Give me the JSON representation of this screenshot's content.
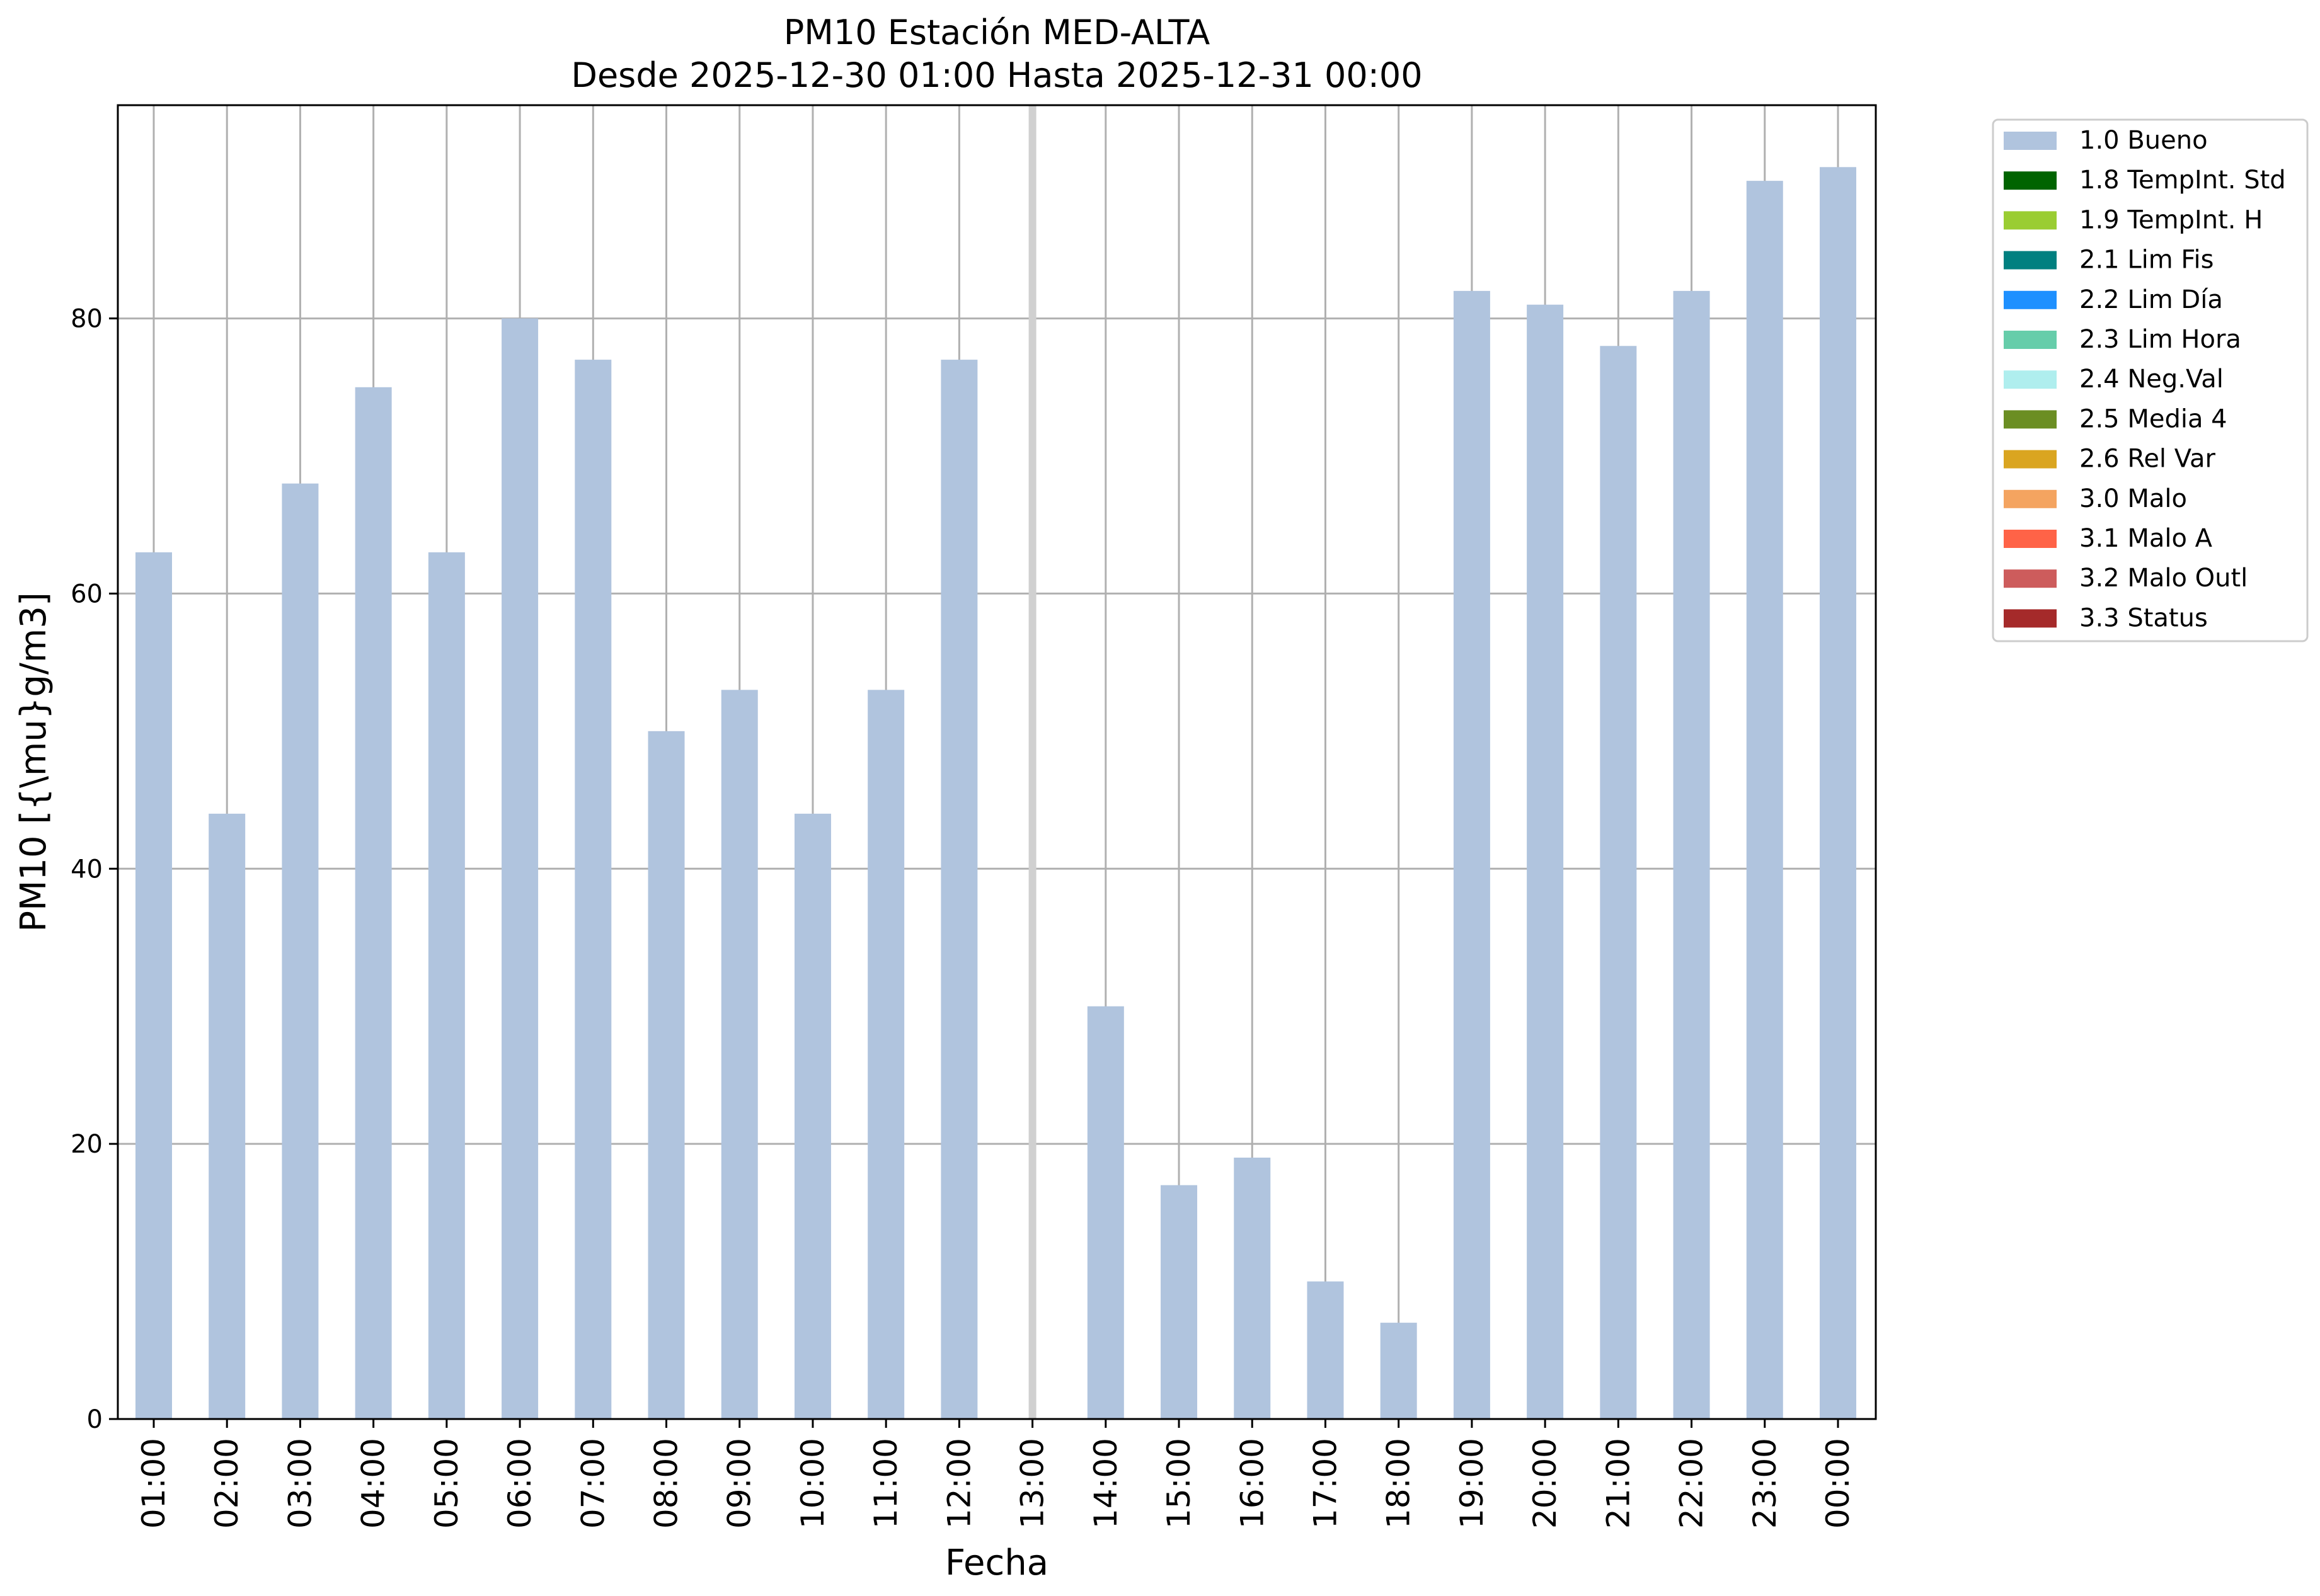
{
  "chart_data": {
    "type": "bar",
    "title": "PM10 Estación MED-ALTA",
    "subtitle": "Desde 2025-12-30 01:00 Hasta 2025-12-31 00:00",
    "xlabel": "Fecha",
    "ylabel": "PM10 [{\\mu}g/m3]",
    "ylim": [
      0,
      95.5
    ],
    "yticks": [
      "0",
      "20",
      "40",
      "60",
      "80"
    ],
    "grid": true,
    "legend_placement": "outside-top-right",
    "categories": [
      "01:00",
      "02:00",
      "03:00",
      "04:00",
      "05:00",
      "06:00",
      "07:00",
      "08:00",
      "09:00",
      "10:00",
      "11:00",
      "12:00",
      "13:00",
      "14:00",
      "15:00",
      "16:00",
      "17:00",
      "18:00",
      "19:00",
      "20:00",
      "21:00",
      "22:00",
      "23:00",
      "00:00"
    ],
    "series": [
      {
        "name": "1.0 Bueno",
        "color": "#b0c4de",
        "values": [
          63,
          44,
          68,
          75,
          63,
          80,
          77,
          50,
          53,
          44,
          53,
          77,
          null,
          30,
          17,
          19,
          10,
          7,
          82,
          81,
          78,
          82,
          90,
          91
        ]
      }
    ],
    "missing_marker_index": 12,
    "legend": [
      {
        "label": "1.0 Bueno",
        "color": "#b0c4de"
      },
      {
        "label": "1.8 TempInt. Std",
        "color": "#006400"
      },
      {
        "label": "1.9 TempInt. H",
        "color": "#9acd32"
      },
      {
        "label": "2.1 Lim Fis",
        "color": "#008080"
      },
      {
        "label": "2.2 Lim Día",
        "color": "#1e90ff"
      },
      {
        "label": "2.3 Lim Hora",
        "color": "#66cdaa"
      },
      {
        "label": "2.4 Neg.Val",
        "color": "#afeeee"
      },
      {
        "label": "2.5 Media 4",
        "color": "#6b8e23"
      },
      {
        "label": "2.6 Rel Var",
        "color": "#daa520"
      },
      {
        "label": "3.0 Malo",
        "color": "#f4a460"
      },
      {
        "label": "3.1 Malo A",
        "color": "#ff6347"
      },
      {
        "label": "3.2 Malo Outl",
        "color": "#cd5c5c"
      },
      {
        "label": "3.3 Status",
        "color": "#a52a2a"
      }
    ]
  }
}
